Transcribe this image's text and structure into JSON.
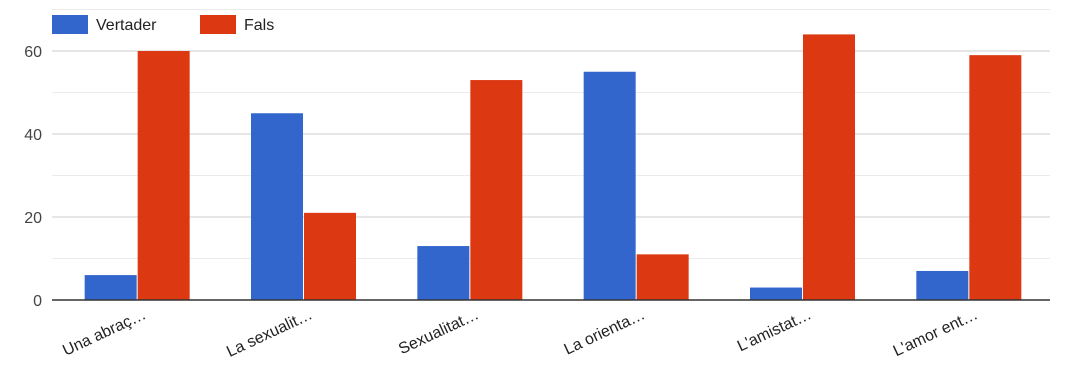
{
  "chart_data": {
    "type": "bar",
    "categories": [
      "Una abraç…",
      "La sexualit…",
      "Sexualitat…",
      "La orienta…",
      "L'amistat…",
      "L'amor ent…"
    ],
    "series": [
      {
        "name": "Vertader",
        "color": "#3366CC",
        "values": [
          6,
          45,
          13,
          55,
          3,
          7
        ]
      },
      {
        "name": "Fals",
        "color": "#DC3912",
        "values": [
          60,
          21,
          53,
          11,
          64,
          59
        ]
      }
    ],
    "yticks": [
      0,
      20,
      40,
      60
    ],
    "ylim": [
      0,
      70
    ],
    "grid": true,
    "legend_position": "top-left"
  }
}
